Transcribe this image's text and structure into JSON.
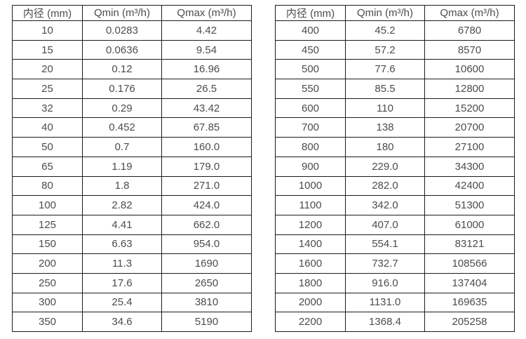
{
  "colors": {
    "background": "#ffffff",
    "border": "#1c1c1c",
    "text": "#4c4c4c"
  },
  "chart_data": [
    {
      "type": "table",
      "title": "",
      "columns": [
        "内径 (mm)",
        "Qmin (m³/h)",
        "Qmax (m³/h)"
      ],
      "rows": [
        [
          "10",
          "0.0283",
          "4.42"
        ],
        [
          "15",
          "0.0636",
          "9.54"
        ],
        [
          "20",
          "0.12",
          "16.96"
        ],
        [
          "25",
          "0.176",
          "26.5"
        ],
        [
          "32",
          "0.29",
          "43.42"
        ],
        [
          "40",
          "0.452",
          "67.85"
        ],
        [
          "50",
          "0.7",
          "160.0"
        ],
        [
          "65",
          "1.19",
          "179.0"
        ],
        [
          "80",
          "1.8",
          "271.0"
        ],
        [
          "100",
          "2.82",
          "424.0"
        ],
        [
          "125",
          "4.41",
          "662.0"
        ],
        [
          "150",
          "6.63",
          "954.0"
        ],
        [
          "200",
          "11.3",
          "1690"
        ],
        [
          "250",
          "17.6",
          "2650"
        ],
        [
          "300",
          "25.4",
          "3810"
        ],
        [
          "350",
          "34.6",
          "5190"
        ]
      ]
    },
    {
      "type": "table",
      "title": "",
      "columns": [
        "内径 (mm)",
        "Qmin (m³/h)",
        "Qmax (m³/h)"
      ],
      "rows": [
        [
          "400",
          "45.2",
          "6780"
        ],
        [
          "450",
          "57.2",
          "8570"
        ],
        [
          "500",
          "77.6",
          "10600"
        ],
        [
          "550",
          "85.5",
          "12800"
        ],
        [
          "600",
          "110",
          "15200"
        ],
        [
          "700",
          "138",
          "20700"
        ],
        [
          "800",
          "180",
          "27100"
        ],
        [
          "900",
          "229.0",
          "34300"
        ],
        [
          "1000",
          "282.0",
          "42400"
        ],
        [
          "1100",
          "342.0",
          "51300"
        ],
        [
          "1200",
          "407.0",
          "61000"
        ],
        [
          "1400",
          "554.1",
          "83121"
        ],
        [
          "1600",
          "732.7",
          "108566"
        ],
        [
          "1800",
          "916.0",
          "137404"
        ],
        [
          "2000",
          "1131.0",
          "169635"
        ],
        [
          "2200",
          "1368.4",
          "205258"
        ]
      ]
    }
  ]
}
